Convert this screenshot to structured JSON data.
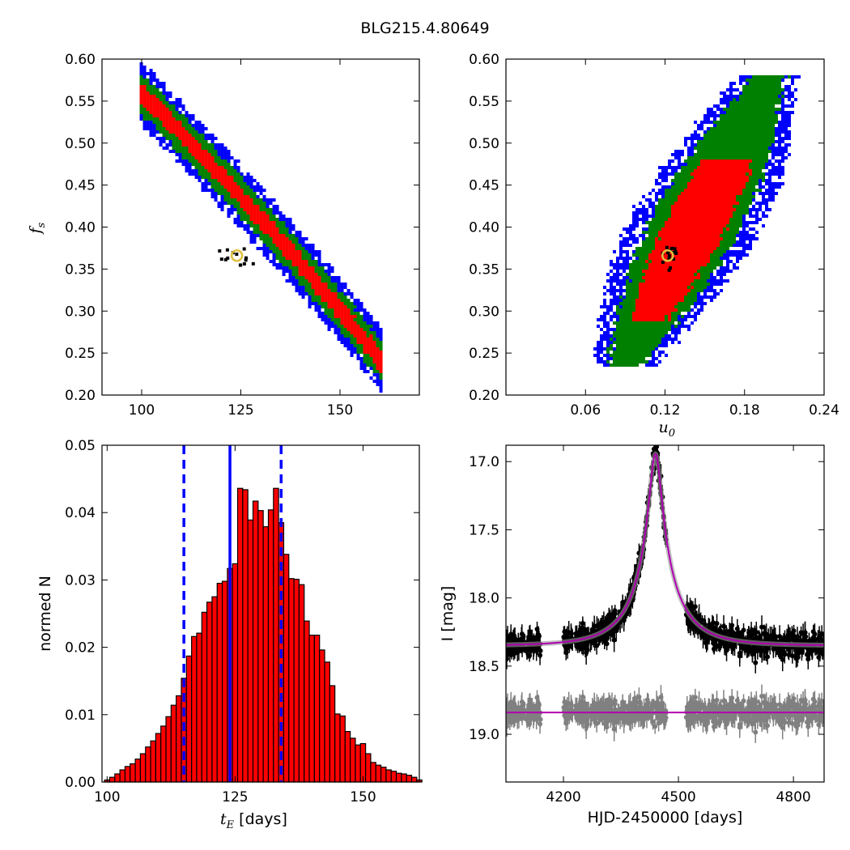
{
  "figure_title": "BLG215.4.80649",
  "colors": {
    "sigma1": "#ff0000",
    "sigma2": "#008000",
    "sigma3": "#0000ff",
    "best": "#000000",
    "marker": "#e0c040",
    "model": "#b000b0",
    "residual": "#808080",
    "hist_bar": "#ff0000",
    "hist_line": "#0000ff"
  },
  "chart_data": [
    {
      "type": "heatmap",
      "panel": "fs-vs-tE",
      "xlabel": "",
      "ylabel": "f_s",
      "ylabel_main": "f",
      "ylabel_sub": "s",
      "xlim": [
        90,
        170
      ],
      "ylim": [
        0.2,
        0.6
      ],
      "xticks": [
        100,
        125,
        150
      ],
      "yticks": [
        0.2,
        0.25,
        0.3,
        0.35,
        0.4,
        0.45,
        0.5,
        0.55,
        0.6
      ],
      "ytick_labels": [
        "0.20",
        "0.25",
        "0.30",
        "0.35",
        "0.40",
        "0.45",
        "0.50",
        "0.55",
        "0.60"
      ],
      "best_fit": {
        "x": 124,
        "y": 0.366
      },
      "contours": {
        "type": "band",
        "x_start": 99.5,
        "x_end": 160.5,
        "y_center_start": 0.56,
        "y_center_end": 0.24,
        "curvature": 0.08,
        "widths": [
          0.012,
          0.024,
          0.038
        ]
      }
    },
    {
      "type": "heatmap",
      "panel": "fs-vs-u0",
      "xlabel": "u_0",
      "xlabel_main": "u",
      "xlabel_sub": "0",
      "ylabel": "",
      "xlim": [
        0.0,
        0.24
      ],
      "ylim": [
        0.2,
        0.6
      ],
      "xticks": [
        0.06,
        0.12,
        0.18,
        0.24
      ],
      "xtick_labels": [
        "0.06",
        "0.12",
        "0.18",
        "0.24"
      ],
      "yticks": [
        0.2,
        0.25,
        0.3,
        0.35,
        0.4,
        0.45,
        0.5,
        0.55,
        0.6
      ],
      "ytick_labels": [
        "0.20",
        "0.25",
        "0.30",
        "0.35",
        "0.40",
        "0.45",
        "0.50",
        "0.55",
        "0.60"
      ],
      "best_fit": {
        "x": 0.122,
        "y": 0.366
      },
      "contours": {
        "type": "ellipse",
        "x_start": 0.07,
        "x_end": 0.205,
        "y_start": 0.24,
        "y_end": 0.575,
        "widths": [
          0.012,
          0.022,
          0.034
        ]
      }
    },
    {
      "type": "bar",
      "panel": "tE-histogram",
      "xlabel_main": "t",
      "xlabel_sub": "E",
      "xlabel_unit": " [days]",
      "ylabel": "normed N",
      "xlim": [
        99,
        161
      ],
      "ylim": [
        0.0,
        0.05
      ],
      "xticks": [
        100,
        125,
        150
      ],
      "yticks": [
        0.0,
        0.01,
        0.02,
        0.03,
        0.04,
        0.05
      ],
      "ytick_labels": [
        "0.00",
        "0.01",
        "0.02",
        "0.03",
        "0.04",
        "0.05"
      ],
      "bin_width": 1.0,
      "bin_start": 99.5,
      "values": [
        0.0003,
        0.0007,
        0.0012,
        0.0018,
        0.0023,
        0.0027,
        0.0034,
        0.0042,
        0.0052,
        0.0061,
        0.0072,
        0.0083,
        0.0097,
        0.0114,
        0.0128,
        0.0154,
        0.0187,
        0.0216,
        0.0221,
        0.0252,
        0.0267,
        0.0275,
        0.0295,
        0.0298,
        0.0317,
        0.0324,
        0.0436,
        0.0434,
        0.0389,
        0.0417,
        0.0403,
        0.0379,
        0.0404,
        0.0436,
        0.0385,
        0.0338,
        0.0302,
        0.0301,
        0.0293,
        0.0239,
        0.0218,
        0.0218,
        0.0196,
        0.0178,
        0.0143,
        0.0101,
        0.0098,
        0.0075,
        0.0065,
        0.0055,
        0.0057,
        0.0042,
        0.0029,
        0.0025,
        0.0022,
        0.0018,
        0.0016,
        0.0013,
        0.0012,
        0.001,
        0.0007,
        0.0003
      ],
      "median_line": 124,
      "interval_lines": [
        115,
        134
      ]
    },
    {
      "type": "scatter",
      "panel": "lightcurve",
      "xlabel": "HJD-2450000 [days]",
      "ylabel": "I [mag]",
      "xlim": [
        4050,
        4880
      ],
      "ylim": [
        19.35,
        16.88
      ],
      "xticks": [
        4200,
        4500,
        4800
      ],
      "yticks": [
        17.0,
        17.5,
        18.0,
        18.5,
        19.0
      ],
      "ytick_labels": [
        "17.0",
        "17.5",
        "18.0",
        "18.5",
        "19.0"
      ],
      "model": {
        "t0": 4440,
        "tE": 124,
        "u0": 0.122,
        "fs": 0.366,
        "I_base": 18.35
      },
      "residual_offset": 18.84,
      "observing_seasons": [
        [
          4050,
          4140
        ],
        [
          4200,
          4470
        ],
        [
          4520,
          4880
        ]
      ]
    }
  ]
}
